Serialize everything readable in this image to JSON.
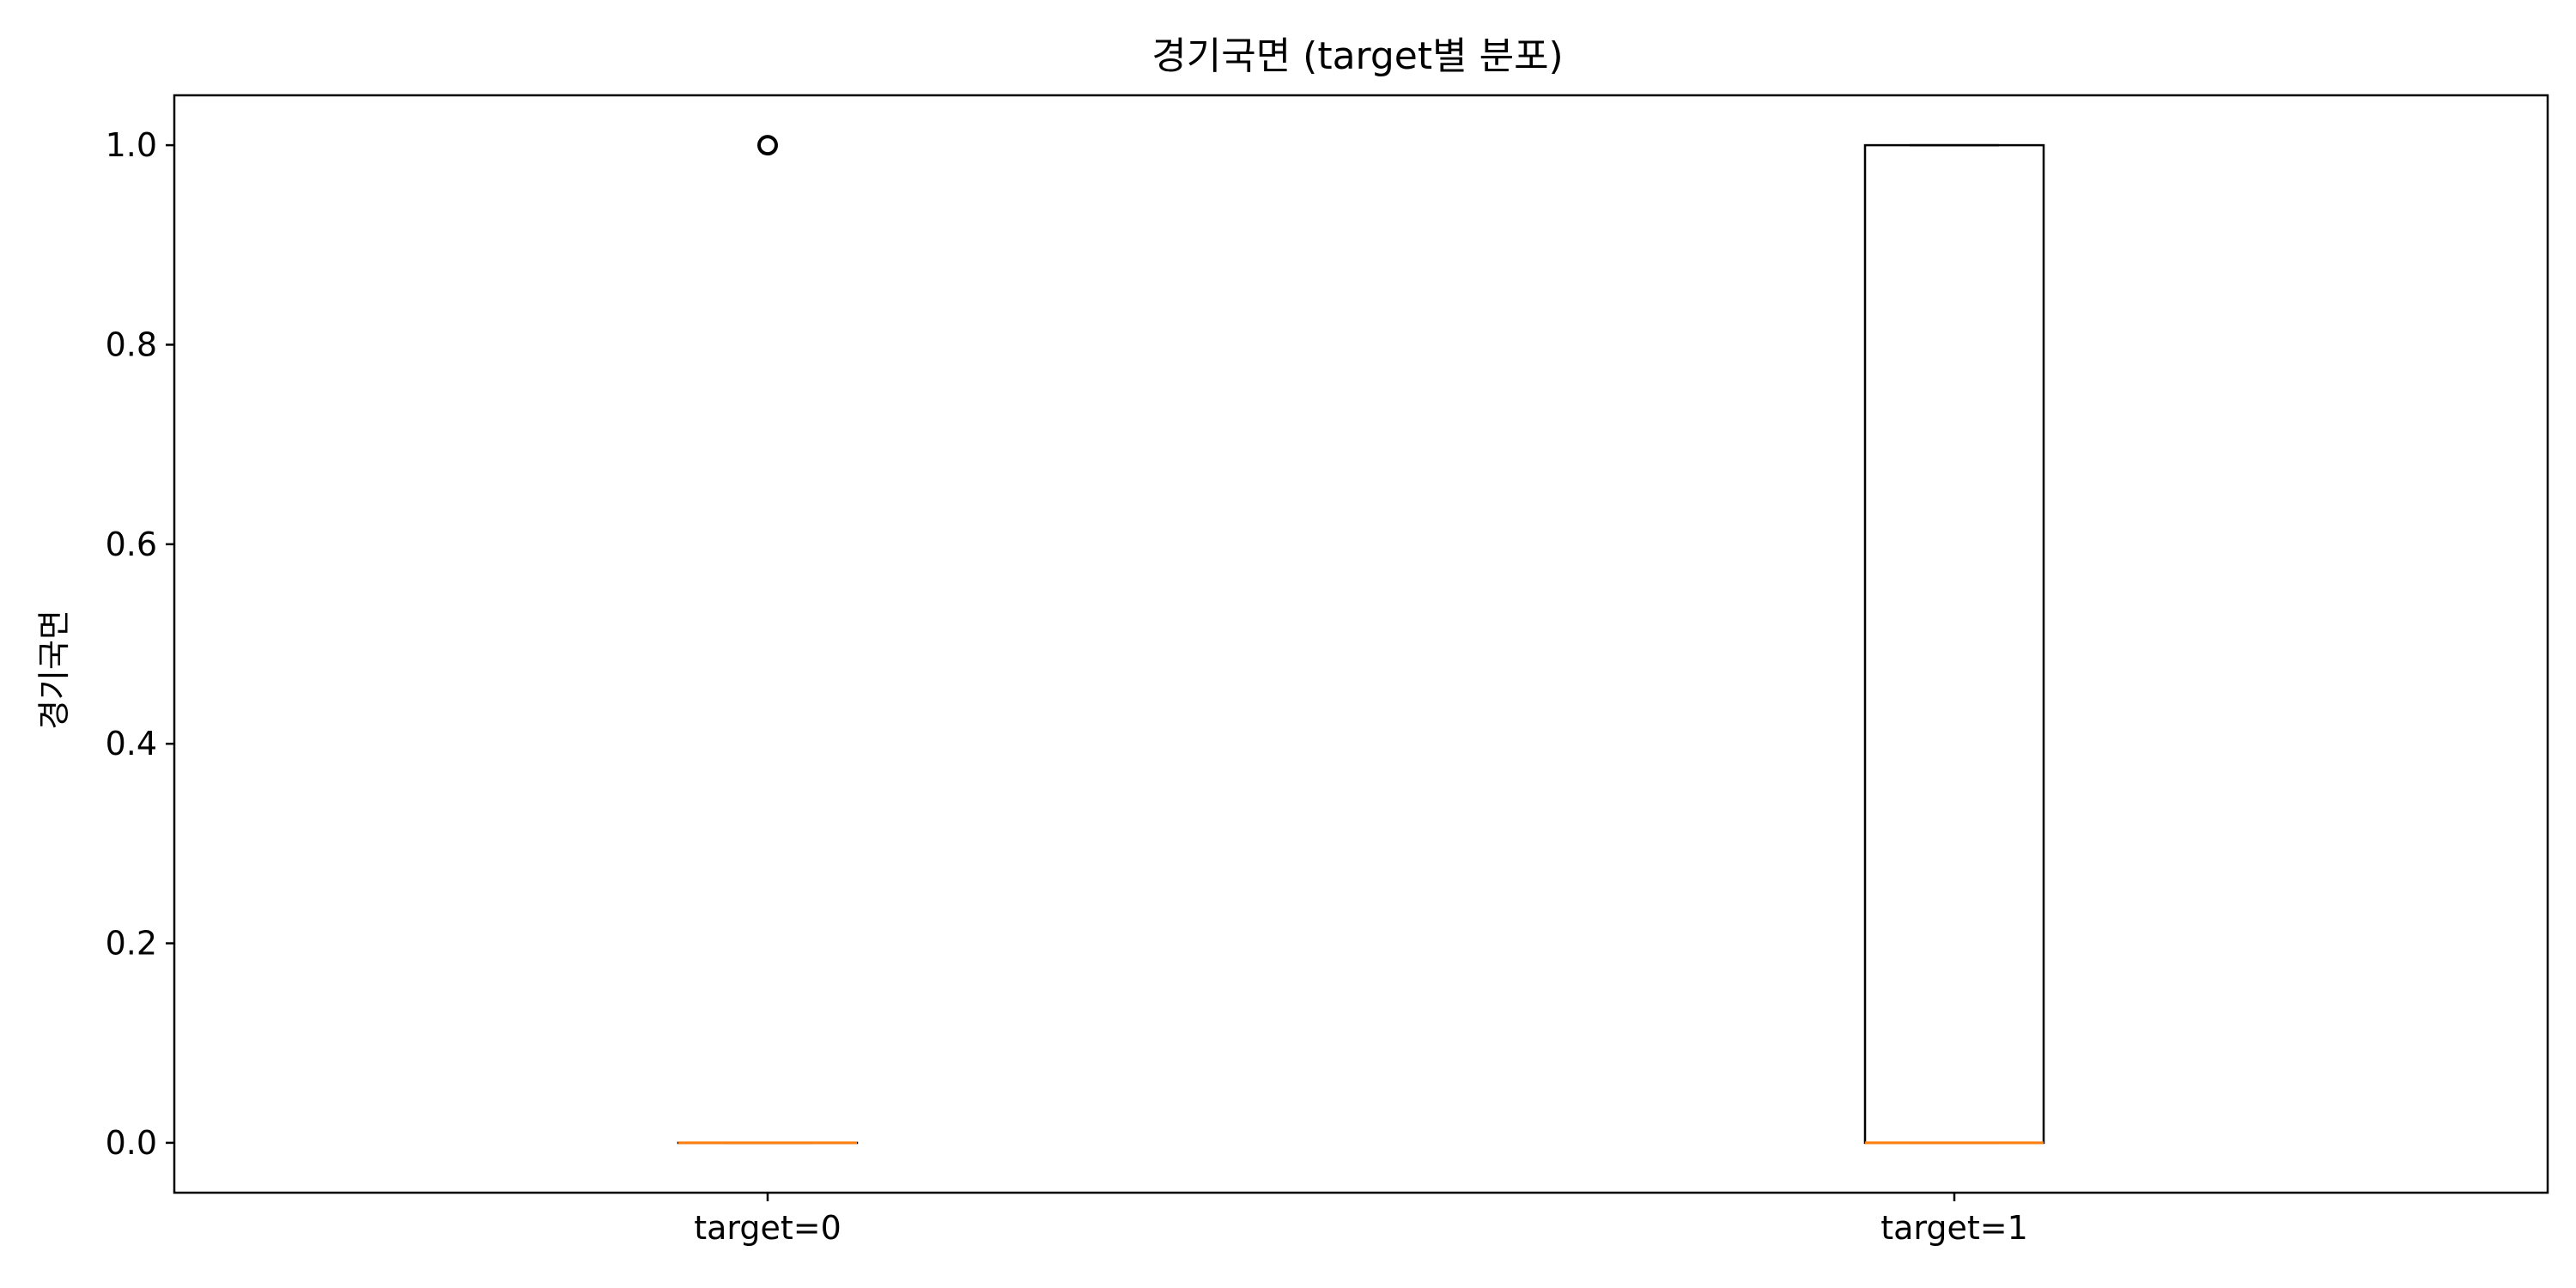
{
  "chart_data": {
    "type": "boxplot",
    "title": "경기국면 (target별 분포)",
    "xlabel": "",
    "ylabel": "경기국면",
    "ylim": [
      -0.05,
      1.05
    ],
    "yticks": [
      0.0,
      0.2,
      0.4,
      0.6,
      0.8,
      1.0
    ],
    "ytick_labels": [
      "0.0",
      "0.2",
      "0.4",
      "0.6",
      "0.8",
      "1.0"
    ],
    "categories": [
      "target=0",
      "target=1"
    ],
    "boxes": [
      {
        "category": "target=0",
        "whisker_low": 0.0,
        "q1": 0.0,
        "median": 0.0,
        "q3": 0.0,
        "whisker_high": 0.0,
        "outliers": [
          1.0
        ]
      },
      {
        "category": "target=1",
        "whisker_low": 0.0,
        "q1": 0.0,
        "median": 0.0,
        "q3": 1.0,
        "whisker_high": 1.0,
        "outliers": []
      }
    ],
    "colors": {
      "box": "#000000",
      "median": "#ff7f0e",
      "outlier": "#000000"
    },
    "grid": false,
    "legend": "none"
  }
}
